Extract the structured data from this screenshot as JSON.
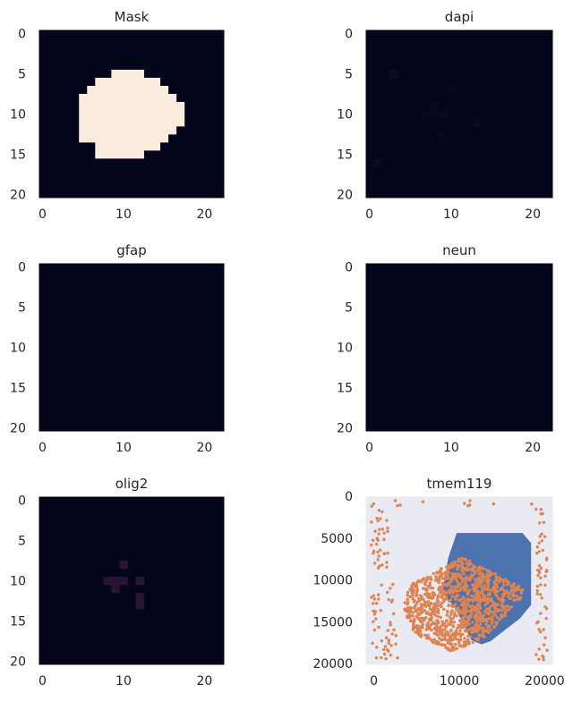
{
  "chart_data": [
    {
      "type": "heatmap",
      "title": "Mask",
      "xticks": [
        0,
        10,
        20
      ],
      "yticks": [
        0,
        5,
        10,
        15,
        20
      ],
      "xlim": [
        0,
        23
      ],
      "ylim": [
        21,
        0
      ],
      "grid": false,
      "base_color": "#03051a",
      "grid_size": [
        23,
        21
      ],
      "cells": [
        {
          "row": 5,
          "cols": [
            9,
            12
          ],
          "color": "#faebdd"
        },
        {
          "row": 6,
          "cols": [
            7,
            14
          ],
          "color": "#faebdd"
        },
        {
          "row": 7,
          "cols": [
            6,
            15
          ],
          "color": "#faebdd"
        },
        {
          "row": 8,
          "cols": [
            5,
            16
          ],
          "color": "#faebdd"
        },
        {
          "row": 9,
          "cols": [
            5,
            17
          ],
          "color": "#faebdd"
        },
        {
          "row": 10,
          "cols": [
            5,
            17
          ],
          "color": "#faebdd"
        },
        {
          "row": 11,
          "cols": [
            5,
            17
          ],
          "color": "#faebdd"
        },
        {
          "row": 12,
          "cols": [
            5,
            16
          ],
          "color": "#faebdd"
        },
        {
          "row": 13,
          "cols": [
            5,
            15
          ],
          "color": "#faebdd"
        },
        {
          "row": 14,
          "cols": [
            7,
            14
          ],
          "color": "#faebdd"
        },
        {
          "row": 15,
          "cols": [
            7,
            12
          ],
          "color": "#faebdd"
        }
      ]
    },
    {
      "type": "heatmap",
      "title": "dapi",
      "xticks": [
        0,
        10,
        20
      ],
      "yticks": [
        0,
        5,
        10,
        15,
        20
      ],
      "xlim": [
        0,
        23
      ],
      "ylim": [
        21,
        0
      ],
      "grid": false,
      "base_color": "#03051a",
      "grid_size": [
        23,
        21
      ],
      "cells": [
        {
          "row": 5,
          "cols": [
            3,
            3
          ],
          "color": "#0c0a22"
        },
        {
          "row": 7,
          "cols": [
            10,
            10
          ],
          "color": "#0a0820"
        },
        {
          "row": 9,
          "cols": [
            8,
            8
          ],
          "color": "#0a0820"
        },
        {
          "row": 10,
          "cols": [
            7,
            9
          ],
          "color": "#0a0820"
        },
        {
          "row": 11,
          "cols": [
            13,
            13
          ],
          "color": "#0a0820"
        },
        {
          "row": 13,
          "cols": [
            9,
            9
          ],
          "color": "#0a0820"
        },
        {
          "row": 16,
          "cols": [
            1,
            1
          ],
          "color": "#0c0a22"
        }
      ]
    },
    {
      "type": "heatmap",
      "title": "gfap",
      "xticks": [
        0,
        10,
        20
      ],
      "yticks": [
        0,
        5,
        10,
        15,
        20
      ],
      "xlim": [
        0,
        23
      ],
      "ylim": [
        21,
        0
      ],
      "grid": false,
      "base_color": "#03051a",
      "grid_size": [
        23,
        21
      ],
      "cells": []
    },
    {
      "type": "heatmap",
      "title": "neun",
      "xticks": [
        0,
        10,
        20
      ],
      "yticks": [
        0,
        5,
        10,
        15,
        20
      ],
      "xlim": [
        0,
        23
      ],
      "ylim": [
        21,
        0
      ],
      "grid": false,
      "base_color": "#03051a",
      "grid_size": [
        23,
        21
      ],
      "cells": []
    },
    {
      "type": "heatmap",
      "title": "olig2",
      "xticks": [
        0,
        10,
        20
      ],
      "yticks": [
        0,
        5,
        10,
        15,
        20
      ],
      "xlim": [
        0,
        23
      ],
      "ylim": [
        21,
        0
      ],
      "grid": false,
      "base_color": "#03051a",
      "grid_size": [
        23,
        21
      ],
      "cells": [
        {
          "row": 8,
          "cols": [
            10,
            10
          ],
          "color": "#2a1436"
        },
        {
          "row": 10,
          "cols": [
            8,
            10
          ],
          "color": "#2a1436"
        },
        {
          "row": 10,
          "cols": [
            12,
            12
          ],
          "color": "#2a1436"
        },
        {
          "row": 11,
          "cols": [
            9,
            9
          ],
          "color": "#2a1436"
        },
        {
          "row": 12,
          "cols": [
            12,
            12
          ],
          "color": "#2a1436"
        },
        {
          "row": 13,
          "cols": [
            12,
            12
          ],
          "color": "#2a1436"
        }
      ]
    },
    {
      "type": "scatter",
      "title": "tmem119",
      "xticks": [
        0,
        10000,
        20000
      ],
      "yticks": [
        5000,
        10000,
        15000,
        20000
      ],
      "ytick_zero": "0",
      "xlim": [
        -1000,
        21000
      ],
      "ylim": [
        20200,
        0
      ],
      "grid": false,
      "background": "#eaeaf2",
      "series": [
        {
          "color": "#4c72b0",
          "kind": "region",
          "polygon": [
            [
              9700,
              4400
            ],
            [
              17400,
              4400
            ],
            [
              18400,
              5600
            ],
            [
              18400,
              13000
            ],
            [
              17100,
              14600
            ],
            [
              14300,
              16800
            ],
            [
              13700,
              17300
            ],
            [
              12600,
              17700
            ],
            [
              11400,
              17200
            ],
            [
              9500,
              13300
            ],
            [
              8000,
              11600
            ],
            [
              8700,
              7400
            ]
          ]
        },
        {
          "color": "#dd8452",
          "kind": "points",
          "regions": [
            {
              "polygon": [
                [
                  3900,
                  10800
                ],
                [
                  10400,
                  7200
                ],
                [
                  18100,
                  11300
                ],
                [
                  13000,
                  16900
                ],
                [
                  9200,
                  18600
                ],
                [
                  4700,
                  16400
                ],
                [
                  3300,
                  13000
                ]
              ],
              "count": 1100
            },
            {
              "polygon": [
                [
                  -300,
                  400
                ],
                [
                  1700,
                  400
                ],
                [
                  1700,
                  9000
                ],
                [
                  -300,
                  9000
                ]
              ],
              "count": 38
            },
            {
              "polygon": [
                [
                  -300,
                  10500
                ],
                [
                  2800,
                  10500
                ],
                [
                  2800,
                  19800
                ],
                [
                  -300,
                  19800
                ]
              ],
              "count": 48
            },
            {
              "polygon": [
                [
                  18900,
                  1000
                ],
                [
                  20300,
                  1000
                ],
                [
                  20300,
                  19800
                ],
                [
                  18900,
                  19800
                ]
              ],
              "count": 52
            },
            {
              "polygon": [
                [
                  2000,
                  400
                ],
                [
                  18800,
                  400
                ],
                [
                  18800,
                  1300
                ],
                [
                  2000,
                  1300
                ]
              ],
              "count": 10
            }
          ]
        }
      ]
    }
  ]
}
